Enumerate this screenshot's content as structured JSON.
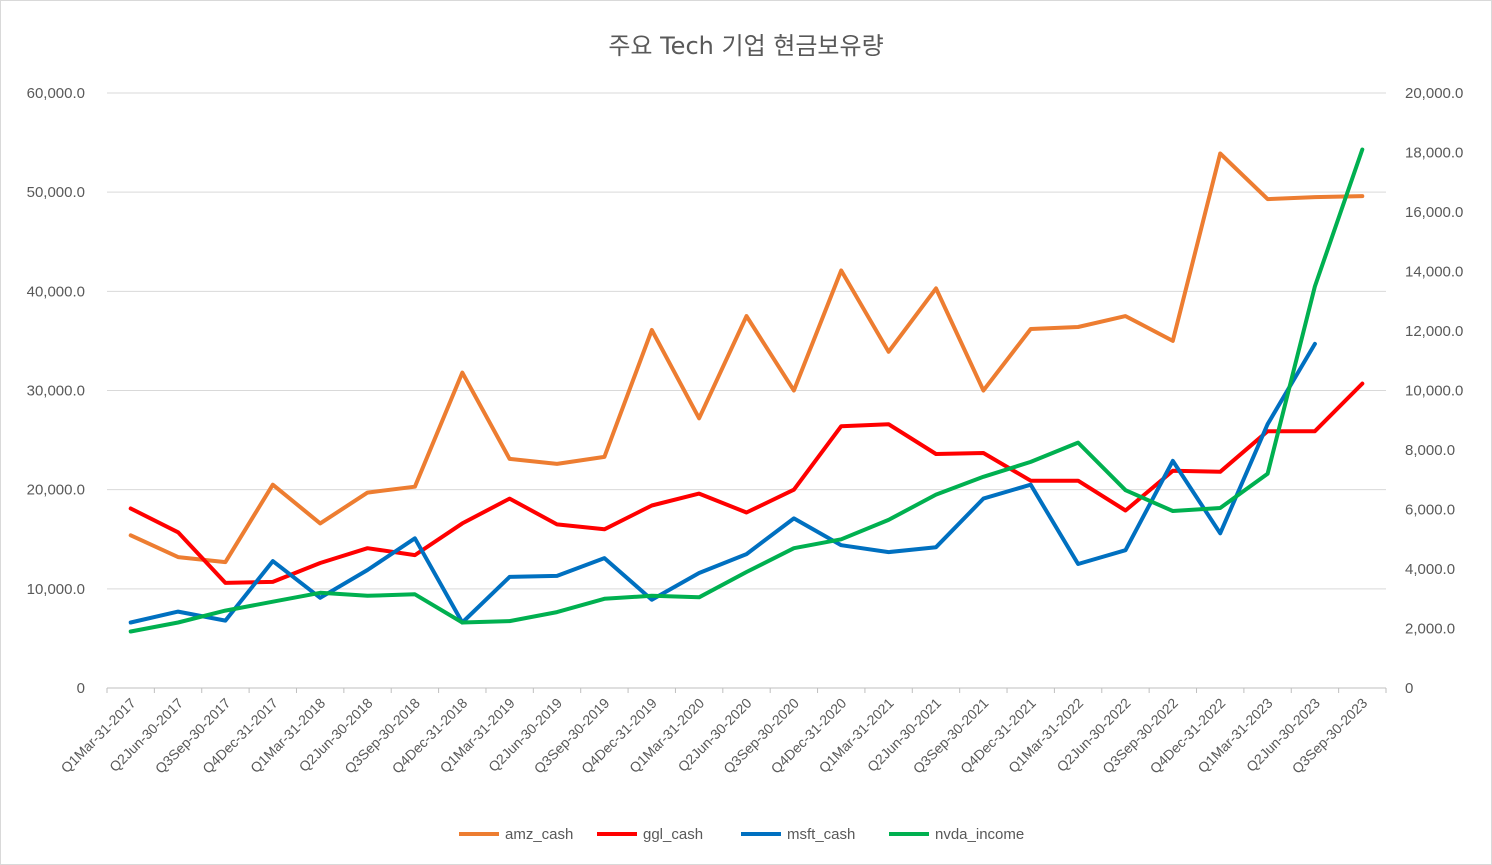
{
  "chart_data": {
    "type": "line",
    "title": "주요 Tech 기업 현금보유량",
    "categories": [
      "Q1Mar-31-2017",
      "Q2Jun-30-2017",
      "Q3Sep-30-2017",
      "Q4Dec-31-2017",
      "Q1Mar-31-2018",
      "Q2Jun-30-2018",
      "Q3Sep-30-2018",
      "Q4Dec-31-2018",
      "Q1Mar-31-2019",
      "Q2Jun-30-2019",
      "Q3Sep-30-2019",
      "Q4Dec-31-2019",
      "Q1Mar-31-2020",
      "Q2Jun-30-2020",
      "Q3Sep-30-2020",
      "Q4Dec-31-2020",
      "Q1Mar-31-2021",
      "Q2Jun-30-2021",
      "Q3Sep-30-2021",
      "Q4Dec-31-2021",
      "Q1Mar-31-2022",
      "Q2Jun-30-2022",
      "Q3Sep-30-2022",
      "Q4Dec-31-2022",
      "Q1Mar-31-2023",
      "Q2Jun-30-2023",
      "Q3Sep-30-2023"
    ],
    "y_left": {
      "ylim": [
        0,
        60000
      ],
      "ticks": [
        "0",
        "10,000.0",
        "20,000.0",
        "30,000.0",
        "40,000.0",
        "50,000.0",
        "60,000.0"
      ]
    },
    "y_right": {
      "ylim": [
        0,
        20000
      ],
      "ticks": [
        "0",
        "2,000.0",
        "4,000.0",
        "6,000.0",
        "8,000.0",
        "10,000.0",
        "12,000.0",
        "14,000.0",
        "16,000.0",
        "18,000.0",
        "20,000.0"
      ]
    },
    "series": [
      {
        "name": "amz_cash",
        "color": "#ED7D31",
        "axis": "left",
        "values": [
          15400,
          13200,
          12700,
          20500,
          16600,
          19700,
          20300,
          31800,
          23100,
          22600,
          23300,
          36100,
          27200,
          37500,
          30000,
          42100,
          33900,
          40300,
          30000,
          36200,
          36400,
          37500,
          35000,
          53900,
          49300,
          49500,
          49600
        ]
      },
      {
        "name": "ggl_cash",
        "color": "#FF0000",
        "axis": "left",
        "values": [
          18100,
          15700,
          10600,
          10700,
          12600,
          14100,
          13400,
          16600,
          19100,
          16500,
          16000,
          18400,
          19600,
          17700,
          20000,
          26400,
          26600,
          23600,
          23700,
          20900,
          20900,
          17900,
          21900,
          21800,
          25900,
          25900,
          30700
        ]
      },
      {
        "name": "msft_cash",
        "color": "#0070C0",
        "axis": "left",
        "values": [
          6600,
          7700,
          6800,
          12800,
          9100,
          11900,
          15100,
          6600,
          11200,
          11300,
          13100,
          8900,
          11600,
          13500,
          17100,
          14400,
          13700,
          14200,
          19100,
          20500,
          12500,
          13900,
          22900,
          15600,
          26600,
          34700,
          null
        ]
      },
      {
        "name": "nvda_income",
        "color": "#00B050",
        "axis": "right",
        "values": [
          1900,
          2200,
          2600,
          2900,
          3200,
          3100,
          3150,
          2200,
          2250,
          2550,
          3000,
          3100,
          3050,
          3900,
          4700,
          5000,
          5650,
          6500,
          7100,
          7600,
          8250,
          6650,
          5950,
          6050,
          7200,
          13500,
          18100
        ]
      }
    ]
  }
}
